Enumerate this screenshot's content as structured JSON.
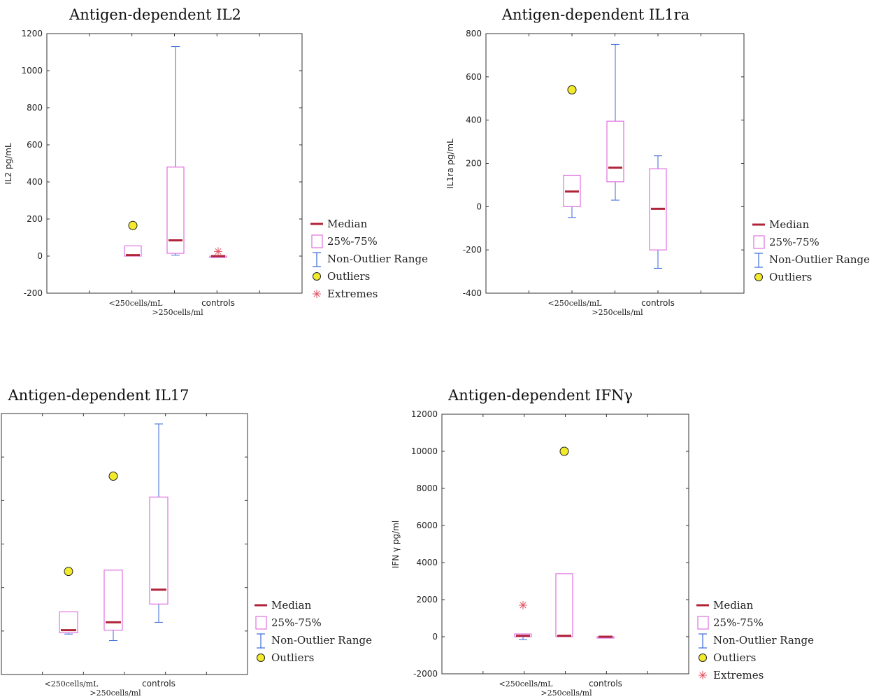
{
  "colors": {
    "median": "#b0243a",
    "box": "#e070e0",
    "whisker": "#3a6ad8",
    "outlier_fill": "#f2ea2a",
    "extreme": "#e05060",
    "frame": "#333333"
  },
  "chart_data": [
    {
      "type": "box",
      "title": "Antigen-dependent IL2",
      "ylabel": "IL2 pg/mL",
      "ylim": [
        -200,
        1200
      ],
      "yticks": [
        1200,
        1000,
        800,
        600,
        400,
        200,
        0,
        -200
      ],
      "categories": [
        "<250cells/mL",
        ">250cells/ml",
        "controls"
      ],
      "boxes": [
        {
          "category": "<250cells/mL",
          "min": 0,
          "q1": 0,
          "median": 5,
          "q3": 55,
          "max": 55,
          "outliers": [
            165
          ],
          "extremes": []
        },
        {
          "category": ">250cells/ml",
          "min": 5,
          "q1": 15,
          "median": 85,
          "q3": 480,
          "max": 1130,
          "outliers": [],
          "extremes": []
        },
        {
          "category": "controls",
          "min": 0,
          "q1": 0,
          "median": 0,
          "q3": 0,
          "max": 0,
          "outliers": [],
          "extremes": [
            25
          ]
        }
      ],
      "legend": [
        "Median",
        "25%-75%",
        "Non-Outlier Range",
        "Outliers",
        "Extremes"
      ]
    },
    {
      "type": "box",
      "title": "Antigen-dependent IL1ra",
      "ylabel": "IL1ra pg/mL",
      "ylim": [
        -400,
        800
      ],
      "yticks": [
        800,
        600,
        400,
        200,
        0,
        -200,
        -400
      ],
      "categories": [
        "<250cells/mL",
        ">250cells/ml",
        "controls"
      ],
      "boxes": [
        {
          "category": "<250cells/mL",
          "min": -50,
          "q1": 0,
          "median": 70,
          "q3": 145,
          "max": 145,
          "outliers": [
            540
          ],
          "extremes": []
        },
        {
          "category": ">250cells/ml",
          "min": 30,
          "q1": 115,
          "median": 180,
          "q3": 395,
          "max": 750,
          "outliers": [],
          "extremes": []
        },
        {
          "category": "controls",
          "min": -285,
          "q1": -200,
          "median": -10,
          "q3": 175,
          "max": 235,
          "outliers": [],
          "extremes": []
        }
      ],
      "legend": [
        "Median",
        "25%-75%",
        "Non-Outlier Range",
        "Outliers"
      ]
    },
    {
      "type": "box",
      "title": "Antigen-dependent IL17",
      "ylabel": "",
      "ylim": [
        0,
        100
      ],
      "yticks": [],
      "categories": [
        "<250cells/mL",
        ">250cells/ml",
        "controls"
      ],
      "boxes": [
        {
          "category": "<250cells/mL",
          "min": 15.5,
          "q1": 16,
          "median": 17,
          "q3": 24,
          "max": 24,
          "outliers": [
            39.5
          ],
          "extremes": []
        },
        {
          "category": ">250cells/ml",
          "min": 13,
          "q1": 17,
          "median": 20,
          "q3": 40,
          "max": 40,
          "outliers": [
            76
          ],
          "extremes": []
        },
        {
          "category": "controls",
          "min": 20,
          "q1": 27,
          "median": 32.5,
          "q3": 68,
          "max": 96,
          "outliers": [],
          "extremes": []
        }
      ],
      "legend": [
        "Median",
        "25%-75%",
        "Non-Outlier Range",
        "Outliers"
      ]
    },
    {
      "type": "box",
      "title": "Antigen-dependent IFNγ",
      "ylabel": "IFN γ pg/ml",
      "ylim": [
        -2000,
        12000
      ],
      "yticks": [
        12000,
        10000,
        8000,
        6000,
        4000,
        2000,
        0,
        -2000
      ],
      "categories": [
        "<250cells/mL",
        ">250cells/ml",
        "controls"
      ],
      "boxes": [
        {
          "category": "<250cells/mL",
          "min": -150,
          "q1": 0,
          "median": 50,
          "q3": 150,
          "max": 150,
          "outliers": [],
          "extremes": [
            1700
          ]
        },
        {
          "category": ">250cells/ml",
          "min": 0,
          "q1": 0,
          "median": 50,
          "q3": 3400,
          "max": 3400,
          "outliers": [
            10000
          ],
          "extremes": []
        },
        {
          "category": "controls",
          "min": 0,
          "q1": 0,
          "median": 0,
          "q3": 0,
          "max": 0,
          "outliers": [],
          "extremes": []
        }
      ],
      "legend": [
        "Median",
        "25%-75%",
        "Non-Outlier Range",
        "Outliers",
        "Extremes"
      ]
    }
  ]
}
